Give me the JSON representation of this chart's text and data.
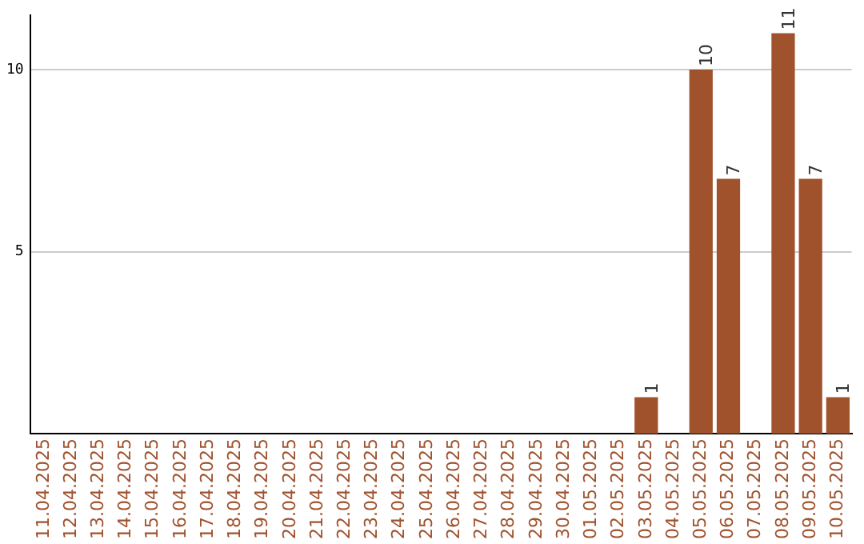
{
  "chart_data": {
    "type": "bar",
    "categories": [
      "11.04.2025",
      "12.04.2025",
      "13.04.2025",
      "14.04.2025",
      "15.04.2025",
      "16.04.2025",
      "17.04.2025",
      "18.04.2025",
      "19.04.2025",
      "20.04.2025",
      "21.04.2025",
      "22.04.2025",
      "23.04.2025",
      "24.04.2025",
      "25.04.2025",
      "26.04.2025",
      "27.04.2025",
      "28.04.2025",
      "29.04.2025",
      "30.04.2025",
      "01.05.2025",
      "02.05.2025",
      "03.05.2025",
      "04.05.2025",
      "05.05.2025",
      "06.05.2025",
      "07.05.2025",
      "08.05.2025",
      "09.05.2025",
      "10.05.2025"
    ],
    "values": [
      0,
      0,
      0,
      0,
      0,
      0,
      0,
      0,
      0,
      0,
      0,
      0,
      0,
      0,
      0,
      0,
      0,
      0,
      0,
      0,
      0,
      0,
      1,
      0,
      10,
      7,
      0,
      11,
      7,
      1
    ],
    "value_labels": [
      null,
      null,
      null,
      null,
      null,
      null,
      null,
      null,
      null,
      null,
      null,
      null,
      null,
      null,
      null,
      null,
      null,
      null,
      null,
      null,
      null,
      null,
      "1",
      null,
      "10",
      "7",
      null,
      "11",
      "7",
      "1"
    ],
    "color": "#a0522d",
    "ylim": [
      0,
      11.5
    ],
    "yticks": [
      5,
      10
    ],
    "grid": "y",
    "legend": false
  }
}
